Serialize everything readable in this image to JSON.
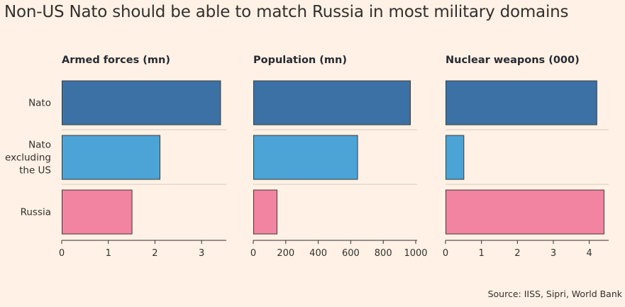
{
  "title": "Non-US Nato should be able to match Russia in most military domains",
  "source": "Source: IISS, Sipri, World Bank",
  "chart_data": {
    "type": "bar",
    "orientation": "horizontal",
    "categories": [
      [
        "Nato"
      ],
      [
        "Nato",
        "excluding",
        "the US"
      ],
      [
        "Russia"
      ]
    ],
    "category_colors": [
      "#3c71a6",
      "#4ca3d6",
      "#f283a1"
    ],
    "panels": [
      {
        "title": "Armed forces (mn)",
        "values": [
          3.4,
          2.1,
          1.5
        ],
        "xlim": [
          0,
          3.5
        ],
        "ticks": [
          0,
          1,
          2,
          3
        ]
      },
      {
        "title": "Population (mn)",
        "values": [
          965,
          640,
          144
        ],
        "xlim": [
          0,
          1000
        ],
        "ticks": [
          0,
          200,
          400,
          600,
          800,
          1000
        ]
      },
      {
        "title": "Nuclear weapons (000)",
        "values": [
          4.2,
          0.5,
          4.4
        ],
        "xlim": [
          0,
          4.5
        ],
        "ticks": [
          0,
          1,
          2,
          3,
          4
        ]
      }
    ]
  }
}
